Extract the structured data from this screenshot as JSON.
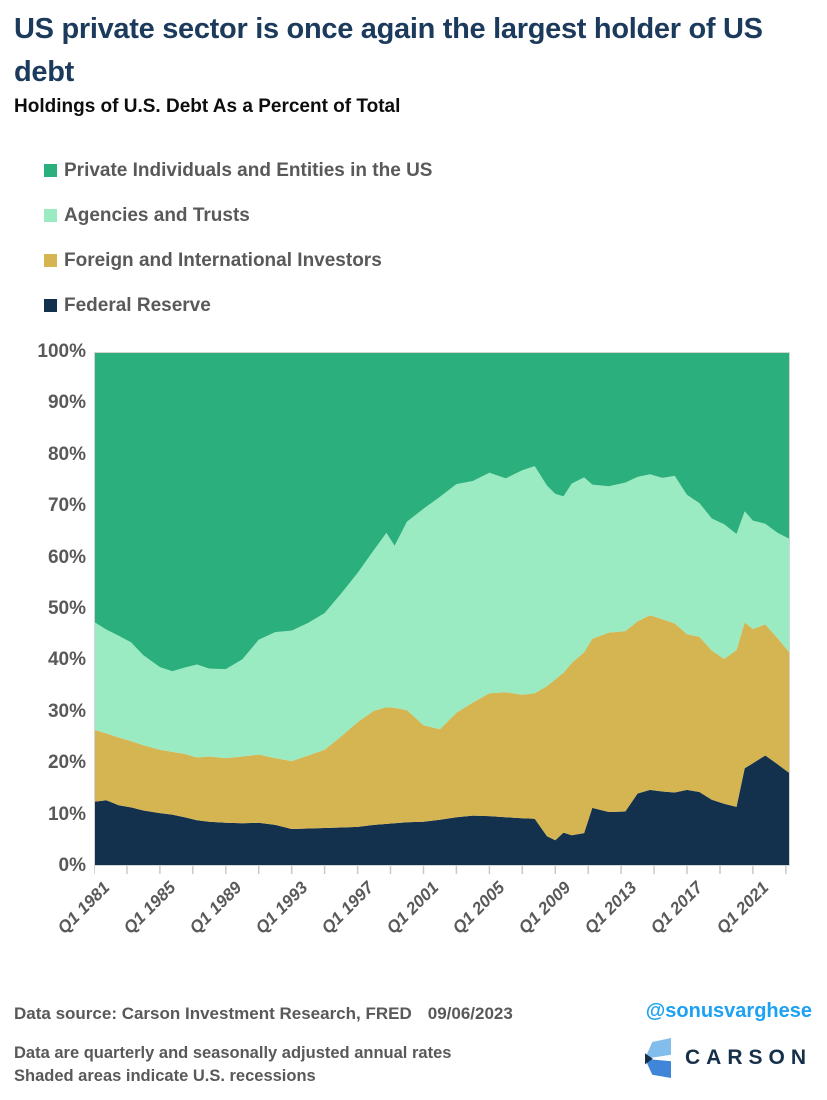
{
  "header": {
    "title_line1": "US private sector is once again the largest holder of US",
    "title_line2": "debt",
    "subtitle": "Holdings of U.S. Debt As a Percent of Total"
  },
  "footer": {
    "source_label": "Data source: Carson Investment Research, FRED",
    "source_date": "09/06/2023",
    "handle": "@sonusvarghese",
    "note_line1": "Data are quarterly and seasonally adjusted annual rates",
    "note_line2": "Shaded areas indicate U.S. recessions",
    "logo_text": "CARSON"
  },
  "colors": {
    "title_navy": "#1b3a5c",
    "text_gray": "#595959",
    "handle_blue": "#1da1f2",
    "logo_navy": "#17304a",
    "logo_light_blue": "#82bdec",
    "logo_mid_blue": "#3f86d8",
    "plot_border": "#d4d4d4",
    "tick_gray": "#c9c9c9"
  },
  "chart_data": {
    "type": "area",
    "stacked": true,
    "title": "Holdings of U.S. Debt As a Percent of Total",
    "unit": "percent of total US debt",
    "x_range": [
      1981.0,
      2023.25
    ],
    "y_range": [
      0,
      100
    ],
    "grid": false,
    "legend_position": "top-left",
    "y_tick_labels": [
      "0%",
      "10%",
      "20%",
      "30%",
      "40%",
      "50%",
      "60%",
      "70%",
      "80%",
      "90%",
      "100%"
    ],
    "x_ticks": [
      {
        "year": 1981,
        "label": "Q1 1981"
      },
      {
        "year": 1985,
        "label": "Q1 1985"
      },
      {
        "year": 1989,
        "label": "Q1 1989"
      },
      {
        "year": 1993,
        "label": "Q1 1993"
      },
      {
        "year": 1997,
        "label": "Q1 1997"
      },
      {
        "year": 2001,
        "label": "Q1 2001"
      },
      {
        "year": 2005,
        "label": "Q1 2005"
      },
      {
        "year": 2009,
        "label": "Q1 2009"
      },
      {
        "year": 2013,
        "label": "Q1 2013"
      },
      {
        "year": 2017,
        "label": "Q1 2017"
      },
      {
        "year": 2021,
        "label": "Q1 2021"
      }
    ],
    "minor_tick_step_years": 2,
    "series": [
      {
        "key": "fed",
        "name": "Federal Reserve",
        "color": "#13314d"
      },
      {
        "key": "foreign",
        "name": "Foreign and International Investors",
        "color": "#d5b452"
      },
      {
        "key": "agencies",
        "name": "Agencies and Trusts",
        "color": "#9aeac2"
      },
      {
        "key": "private",
        "name": "Private Individuals and Entities in the US",
        "color": "#2bb07d"
      }
    ],
    "samples": [
      {
        "x": 1981.0,
        "fed": 12.5,
        "foreign": 14.0,
        "agencies": 21.0,
        "private": 52.5
      },
      {
        "x": 1981.75,
        "fed": 12.8,
        "foreign": 13.0,
        "agencies": 20.2,
        "private": 54.0
      },
      {
        "x": 1982.5,
        "fed": 11.8,
        "foreign": 13.2,
        "agencies": 19.8,
        "private": 55.2
      },
      {
        "x": 1983.25,
        "fed": 11.4,
        "foreign": 12.9,
        "agencies": 19.2,
        "private": 56.5
      },
      {
        "x": 1984.0,
        "fed": 10.8,
        "foreign": 12.7,
        "agencies": 17.5,
        "private": 59.0
      },
      {
        "x": 1985.0,
        "fed": 10.3,
        "foreign": 12.3,
        "agencies": 16.1,
        "private": 61.3
      },
      {
        "x": 1985.75,
        "fed": 10.0,
        "foreign": 12.2,
        "agencies": 15.7,
        "private": 62.1
      },
      {
        "x": 1986.5,
        "fed": 9.5,
        "foreign": 12.3,
        "agencies": 16.8,
        "private": 61.4
      },
      {
        "x": 1987.25,
        "fed": 8.9,
        "foreign": 12.2,
        "agencies": 18.1,
        "private": 60.8
      },
      {
        "x": 1988.0,
        "fed": 8.6,
        "foreign": 12.7,
        "agencies": 17.1,
        "private": 61.6
      },
      {
        "x": 1989.0,
        "fed": 8.4,
        "foreign": 12.6,
        "agencies": 17.3,
        "private": 61.7
      },
      {
        "x": 1990.0,
        "fed": 8.3,
        "foreign": 13.0,
        "agencies": 18.9,
        "private": 59.8
      },
      {
        "x": 1991.0,
        "fed": 8.4,
        "foreign": 13.3,
        "agencies": 22.3,
        "private": 56.0
      },
      {
        "x": 1992.0,
        "fed": 8.0,
        "foreign": 13.0,
        "agencies": 24.5,
        "private": 54.5
      },
      {
        "x": 1993.0,
        "fed": 7.2,
        "foreign": 13.2,
        "agencies": 25.4,
        "private": 54.2
      },
      {
        "x": 1994.0,
        "fed": 7.3,
        "foreign": 14.2,
        "agencies": 25.8,
        "private": 52.7
      },
      {
        "x": 1995.0,
        "fed": 7.4,
        "foreign": 15.2,
        "agencies": 26.6,
        "private": 50.8
      },
      {
        "x": 1996.0,
        "fed": 7.5,
        "foreign": 17.7,
        "agencies": 27.8,
        "private": 47.0
      },
      {
        "x": 1997.0,
        "fed": 7.6,
        "foreign": 20.4,
        "agencies": 29.0,
        "private": 43.0
      },
      {
        "x": 1998.0,
        "fed": 8.0,
        "foreign": 22.2,
        "agencies": 31.3,
        "private": 38.5
      },
      {
        "x": 1998.75,
        "fed": 8.2,
        "foreign": 22.7,
        "agencies": 33.9,
        "private": 35.2
      },
      {
        "x": 1999.25,
        "fed": 8.3,
        "foreign": 22.5,
        "agencies": 31.5,
        "private": 37.7
      },
      {
        "x": 2000.0,
        "fed": 8.5,
        "foreign": 21.8,
        "agencies": 36.7,
        "private": 33.0
      },
      {
        "x": 2001.0,
        "fed": 8.6,
        "foreign": 18.8,
        "agencies": 42.1,
        "private": 30.5
      },
      {
        "x": 2002.0,
        "fed": 9.0,
        "foreign": 17.6,
        "agencies": 45.2,
        "private": 28.2
      },
      {
        "x": 2003.0,
        "fed": 9.5,
        "foreign": 20.3,
        "agencies": 44.5,
        "private": 25.7
      },
      {
        "x": 2004.0,
        "fed": 9.8,
        "foreign": 22.0,
        "agencies": 43.1,
        "private": 25.1
      },
      {
        "x": 2005.0,
        "fed": 9.7,
        "foreign": 23.9,
        "agencies": 42.9,
        "private": 23.5
      },
      {
        "x": 2006.0,
        "fed": 9.5,
        "foreign": 24.3,
        "agencies": 41.6,
        "private": 24.6
      },
      {
        "x": 2007.0,
        "fed": 9.3,
        "foreign": 24.0,
        "agencies": 43.7,
        "private": 23.0
      },
      {
        "x": 2007.75,
        "fed": 9.2,
        "foreign": 24.4,
        "agencies": 44.2,
        "private": 22.2
      },
      {
        "x": 2008.5,
        "fed": 5.8,
        "foreign": 29.2,
        "agencies": 39.0,
        "private": 26.0
      },
      {
        "x": 2009.0,
        "fed": 5.0,
        "foreign": 31.3,
        "agencies": 36.1,
        "private": 27.6
      },
      {
        "x": 2009.5,
        "fed": 6.5,
        "foreign": 31.1,
        "agencies": 34.3,
        "private": 28.1
      },
      {
        "x": 2010.0,
        "fed": 6.0,
        "foreign": 33.5,
        "agencies": 34.9,
        "private": 25.6
      },
      {
        "x": 2010.75,
        "fed": 6.4,
        "foreign": 35.2,
        "agencies": 34.0,
        "private": 24.4
      },
      {
        "x": 2011.25,
        "fed": 11.3,
        "foreign": 32.9,
        "agencies": 30.0,
        "private": 25.8
      },
      {
        "x": 2012.25,
        "fed": 10.5,
        "foreign": 34.9,
        "agencies": 28.5,
        "private": 26.1
      },
      {
        "x": 2013.25,
        "fed": 10.6,
        "foreign": 35.1,
        "agencies": 28.9,
        "private": 25.4
      },
      {
        "x": 2014.0,
        "fed": 14.1,
        "foreign": 33.5,
        "agencies": 28.1,
        "private": 24.3
      },
      {
        "x": 2014.75,
        "fed": 14.8,
        "foreign": 34.0,
        "agencies": 27.4,
        "private": 23.8
      },
      {
        "x": 2015.5,
        "fed": 14.5,
        "foreign": 33.5,
        "agencies": 27.5,
        "private": 24.5
      },
      {
        "x": 2016.25,
        "fed": 14.3,
        "foreign": 32.9,
        "agencies": 28.7,
        "private": 24.1
      },
      {
        "x": 2017.0,
        "fed": 14.8,
        "foreign": 30.3,
        "agencies": 27.1,
        "private": 27.8
      },
      {
        "x": 2017.75,
        "fed": 14.4,
        "foreign": 30.2,
        "agencies": 26.0,
        "private": 29.4
      },
      {
        "x": 2018.5,
        "fed": 12.9,
        "foreign": 29.0,
        "agencies": 25.7,
        "private": 32.4
      },
      {
        "x": 2019.25,
        "fed": 12.1,
        "foreign": 28.2,
        "agencies": 26.2,
        "private": 33.5
      },
      {
        "x": 2020.0,
        "fed": 11.5,
        "foreign": 30.5,
        "agencies": 22.6,
        "private": 35.4
      },
      {
        "x": 2020.5,
        "fed": 19.0,
        "foreign": 28.4,
        "agencies": 21.6,
        "private": 31.0
      },
      {
        "x": 2021.0,
        "fed": 20.0,
        "foreign": 26.1,
        "agencies": 21.1,
        "private": 32.8
      },
      {
        "x": 2021.75,
        "fed": 21.5,
        "foreign": 25.5,
        "agencies": 19.6,
        "private": 33.4
      },
      {
        "x": 2022.5,
        "fed": 19.8,
        "foreign": 24.5,
        "agencies": 20.5,
        "private": 35.2
      },
      {
        "x": 2023.25,
        "fed": 18.0,
        "foreign": 23.4,
        "agencies": 22.2,
        "private": 36.4
      }
    ]
  }
}
